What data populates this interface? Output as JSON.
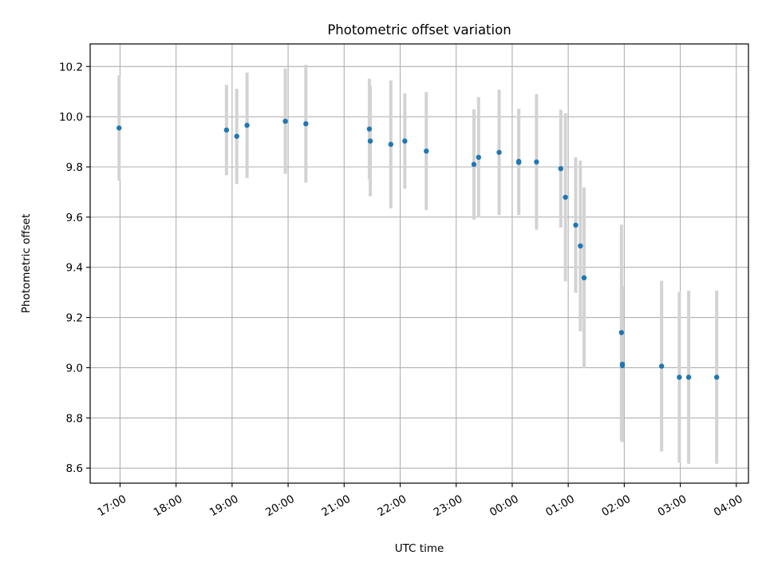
{
  "chart_data": {
    "type": "scatter",
    "title": "Photometric offset variation",
    "xlabel": "UTC time",
    "ylabel": "Photometric offset",
    "grid": true,
    "x_ticks": [
      "17:00",
      "18:00",
      "19:00",
      "20:00",
      "21:00",
      "22:00",
      "23:00",
      "00:00",
      "01:00",
      "02:00",
      "03:00",
      "04:00"
    ],
    "y_ticks": [
      "8.6",
      "8.8",
      "9.0",
      "9.2",
      "9.4",
      "9.6",
      "9.8",
      "10.0",
      "10.2"
    ],
    "xlim": [
      "16:28",
      "04:13"
    ],
    "ylim": [
      8.54,
      10.29
    ],
    "colors": {
      "point": "#1f77b4",
      "errorbar": "#d3d3d3",
      "grid": "#b0b0b0"
    },
    "series": [
      {
        "points": [
          {
            "x": "16:59",
            "y": 9.955,
            "err": 0.21
          },
          {
            "x": "18:54",
            "y": 9.947,
            "err": 0.18
          },
          {
            "x": "19:05",
            "y": 9.922,
            "err": 0.19
          },
          {
            "x": "19:16",
            "y": 9.966,
            "err": 0.21
          },
          {
            "x": "19:57",
            "y": 9.982,
            "err": 0.21
          },
          {
            "x": "20:19",
            "y": 9.972,
            "err": 0.235
          },
          {
            "x": "21:27",
            "y": 9.951,
            "err": 0.2
          },
          {
            "x": "21:28",
            "y": 9.903,
            "err": 0.22
          },
          {
            "x": "21:50",
            "y": 9.89,
            "err": 0.255
          },
          {
            "x": "22:05",
            "y": 9.903,
            "err": 0.19
          },
          {
            "x": "22:28",
            "y": 9.863,
            "err": 0.235
          },
          {
            "x": "23:19",
            "y": 9.81,
            "err": 0.22
          },
          {
            "x": "23:24",
            "y": 9.838,
            "err": 0.24
          },
          {
            "x": "23:46",
            "y": 9.858,
            "err": 0.25
          },
          {
            "x": "00:07",
            "y": 9.822,
            "err": 0.21
          },
          {
            "x": "00:07",
            "y": 9.818,
            "err": 0.21
          },
          {
            "x": "00:26",
            "y": 9.82,
            "err": 0.27
          },
          {
            "x": "00:52",
            "y": 9.793,
            "err": 0.235
          },
          {
            "x": "00:57",
            "y": 9.679,
            "err": 0.335
          },
          {
            "x": "01:08",
            "y": 9.568,
            "err": 0.27
          },
          {
            "x": "01:13",
            "y": 9.485,
            "err": 0.34
          },
          {
            "x": "01:17",
            "y": 9.358,
            "err": 0.36
          },
          {
            "x": "01:57",
            "y": 9.14,
            "err": 0.43
          },
          {
            "x": "01:58",
            "y": 9.008,
            "err": 0.3
          },
          {
            "x": "01:58",
            "y": 9.014,
            "err": 0.31
          },
          {
            "x": "02:40",
            "y": 9.006,
            "err": 0.34
          },
          {
            "x": "02:59",
            "y": 8.962,
            "err": 0.34
          },
          {
            "x": "03:09",
            "y": 8.962,
            "err": 0.345
          },
          {
            "x": "03:39",
            "y": 8.962,
            "err": 0.345
          }
        ]
      }
    ]
  }
}
